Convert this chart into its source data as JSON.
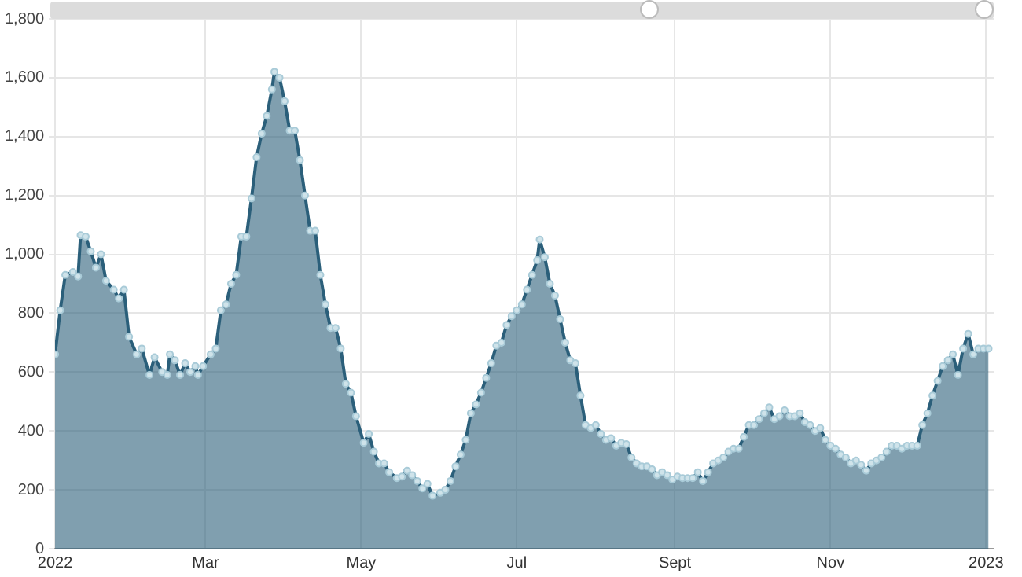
{
  "chart_data": {
    "type": "area",
    "grid": true,
    "marker": "circle",
    "legend": false,
    "xlim": [
      "2022-01-01",
      "2023-01-04"
    ],
    "xticks": [
      {
        "value": "2022-01-01",
        "label": "2022"
      },
      {
        "value": "2022-03-01",
        "label": "Mar"
      },
      {
        "value": "2022-05-01",
        "label": "May"
      },
      {
        "value": "2022-07-01",
        "label": "Jul"
      },
      {
        "value": "2022-09-01",
        "label": "Sept"
      },
      {
        "value": "2022-11-01",
        "label": "Nov"
      },
      {
        "value": "2023-01-01",
        "label": "2023"
      }
    ],
    "ylim": [
      0,
      1800
    ],
    "yticks": [
      0,
      200,
      400,
      600,
      800,
      {
        "value": 1000,
        "label": "1,000"
      },
      {
        "value": 1200,
        "label": "1,200"
      },
      {
        "value": 1400,
        "label": "1,400"
      },
      {
        "value": 1600,
        "label": "1,600"
      },
      {
        "value": 1800,
        "label": "1,800"
      }
    ],
    "x": [
      "2022-01-01",
      "2022-01-03",
      "2022-01-05",
      "2022-01-08",
      "2022-01-10",
      "2022-01-11",
      "2022-01-13",
      "2022-01-15",
      "2022-01-17",
      "2022-01-19",
      "2022-01-21",
      "2022-01-24",
      "2022-01-26",
      "2022-01-28",
      "2022-01-30",
      "2022-02-02",
      "2022-02-04",
      "2022-02-07",
      "2022-02-09",
      "2022-02-12",
      "2022-02-14",
      "2022-02-15",
      "2022-02-17",
      "2022-02-19",
      "2022-02-21",
      "2022-02-23",
      "2022-02-25",
      "2022-02-26",
      "2022-02-28",
      "2022-03-03",
      "2022-03-05",
      "2022-03-07",
      "2022-03-09",
      "2022-03-11",
      "2022-03-13",
      "2022-03-15",
      "2022-03-17",
      "2022-03-19",
      "2022-03-21",
      "2022-03-23",
      "2022-03-25",
      "2022-03-27",
      "2022-03-28",
      "2022-03-30",
      "2022-04-01",
      "2022-04-03",
      "2022-04-05",
      "2022-04-07",
      "2022-04-09",
      "2022-04-11",
      "2022-04-13",
      "2022-04-15",
      "2022-04-17",
      "2022-04-19",
      "2022-04-21",
      "2022-04-23",
      "2022-04-25",
      "2022-04-27",
      "2022-04-29",
      "2022-05-02",
      "2022-05-04",
      "2022-05-06",
      "2022-05-08",
      "2022-05-10",
      "2022-05-12",
      "2022-05-15",
      "2022-05-17",
      "2022-05-19",
      "2022-05-21",
      "2022-05-23",
      "2022-05-25",
      "2022-05-27",
      "2022-05-29",
      "2022-06-01",
      "2022-06-03",
      "2022-06-05",
      "2022-06-07",
      "2022-06-09",
      "2022-06-11",
      "2022-06-13",
      "2022-06-15",
      "2022-06-17",
      "2022-06-19",
      "2022-06-21",
      "2022-06-23",
      "2022-06-25",
      "2022-06-27",
      "2022-06-29",
      "2022-07-01",
      "2022-07-03",
      "2022-07-05",
      "2022-07-07",
      "2022-07-09",
      "2022-07-10",
      "2022-07-12",
      "2022-07-14",
      "2022-07-16",
      "2022-07-18",
      "2022-07-20",
      "2022-07-22",
      "2022-07-24",
      "2022-07-26",
      "2022-07-28",
      "2022-07-30",
      "2022-08-01",
      "2022-08-03",
      "2022-08-05",
      "2022-08-07",
      "2022-08-09",
      "2022-08-11",
      "2022-08-13",
      "2022-08-15",
      "2022-08-17",
      "2022-08-19",
      "2022-08-21",
      "2022-08-23",
      "2022-08-25",
      "2022-08-27",
      "2022-08-29",
      "2022-08-31",
      "2022-09-02",
      "2022-09-04",
      "2022-09-06",
      "2022-09-08",
      "2022-09-10",
      "2022-09-12",
      "2022-09-14",
      "2022-09-16",
      "2022-09-18",
      "2022-09-20",
      "2022-09-22",
      "2022-09-24",
      "2022-09-26",
      "2022-09-28",
      "2022-09-30",
      "2022-10-02",
      "2022-10-04",
      "2022-10-06",
      "2022-10-08",
      "2022-10-10",
      "2022-10-12",
      "2022-10-14",
      "2022-10-16",
      "2022-10-18",
      "2022-10-20",
      "2022-10-22",
      "2022-10-24",
      "2022-10-26",
      "2022-10-28",
      "2022-10-30",
      "2022-11-01",
      "2022-11-03",
      "2022-11-05",
      "2022-11-07",
      "2022-11-09",
      "2022-11-11",
      "2022-11-13",
      "2022-11-15",
      "2022-11-17",
      "2022-11-19",
      "2022-11-21",
      "2022-11-23",
      "2022-11-25",
      "2022-11-27",
      "2022-11-29",
      "2022-12-01",
      "2022-12-03",
      "2022-12-05",
      "2022-12-07",
      "2022-12-09",
      "2022-12-11",
      "2022-12-13",
      "2022-12-15",
      "2022-12-17",
      "2022-12-19",
      "2022-12-21",
      "2022-12-23",
      "2022-12-25",
      "2022-12-27",
      "2022-12-29",
      "2022-12-31",
      "2023-01-02"
    ],
    "series": [
      {
        "color": "#2b5f7a",
        "values": [
          660,
          810,
          930,
          940,
          925,
          1065,
          1060,
          1010,
          955,
          1000,
          910,
          880,
          850,
          880,
          720,
          660,
          680,
          590,
          650,
          600,
          590,
          660,
          640,
          590,
          630,
          600,
          620,
          590,
          620,
          660,
          680,
          810,
          830,
          900,
          930,
          1060,
          1060,
          1190,
          1330,
          1410,
          1470,
          1560,
          1620,
          1600,
          1520,
          1420,
          1420,
          1320,
          1200,
          1080,
          1080,
          930,
          830,
          750,
          750,
          680,
          560,
          530,
          450,
          360,
          390,
          330,
          290,
          290,
          260,
          240,
          245,
          265,
          250,
          230,
          205,
          220,
          180,
          190,
          200,
          230,
          280,
          320,
          370,
          460,
          490,
          530,
          580,
          630,
          690,
          700,
          760,
          790,
          810,
          830,
          880,
          930,
          980,
          1050,
          990,
          900,
          860,
          780,
          700,
          640,
          630,
          520,
          420,
          410,
          420,
          390,
          370,
          375,
          350,
          360,
          355,
          310,
          290,
          280,
          280,
          270,
          250,
          260,
          250,
          235,
          245,
          240,
          240,
          240,
          260,
          230,
          260,
          290,
          300,
          310,
          330,
          340,
          340,
          380,
          420,
          420,
          440,
          460,
          480,
          440,
          450,
          470,
          450,
          450,
          460,
          430,
          420,
          400,
          410,
          370,
          350,
          340,
          320,
          310,
          290,
          300,
          285,
          265,
          290,
          300,
          310,
          330,
          350,
          350,
          340,
          350,
          350,
          350,
          420,
          460,
          520,
          570,
          620,
          640,
          660,
          590,
          680,
          730,
          660,
          680,
          680,
          680
        ]
      }
    ]
  }
}
